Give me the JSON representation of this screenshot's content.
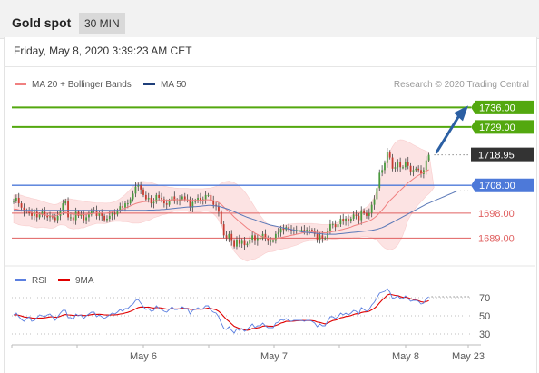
{
  "header": {
    "title": "Gold spot",
    "timeframe": "30 MIN",
    "datetime": "Friday, May 8, 2020 3:39:23 AM CET"
  },
  "legend": {
    "ma_bollinger_label": "MA 20 + Bollinger Bands",
    "ma50_label": "MA 50",
    "copyright": "Research © 2020 Trading Central",
    "rsi_label": "RSI",
    "rsi_ma_label": "9MA"
  },
  "colors": {
    "ma_bollinger": "#f08080",
    "ma50": "#1f3f7a",
    "resistance": "#53a80f",
    "pivot": "#4d79d9",
    "support": "#e06060",
    "arrow": "#2b5fa3",
    "price_box": "#333333",
    "rsi": "#5b7fe0",
    "rsi_ma": "#e00000"
  },
  "chart_data": [
    {
      "type": "candlestick",
      "title": "Gold spot",
      "timeframe": "30 MIN",
      "y_range": [
        1680,
        1742
      ],
      "current_price": 1718.95,
      "levels": [
        {
          "value": 1736.0,
          "label": "1736.00",
          "kind": "resistance"
        },
        {
          "value": 1729.0,
          "label": "1729.00",
          "kind": "resistance"
        },
        {
          "value": 1718.95,
          "label": "1718.95",
          "kind": "current"
        },
        {
          "value": 1708.0,
          "label": "1708.00",
          "kind": "pivot"
        },
        {
          "value": 1698.0,
          "label": "1698.00",
          "kind": "support"
        },
        {
          "value": 1689.0,
          "label": "1689.00",
          "kind": "support"
        }
      ],
      "x_ticks": [
        "May 6",
        "May 7",
        "May 8",
        "May 23"
      ],
      "close_series": [
        1702.5,
        1703.5,
        1701.5,
        1700.0,
        1698.5,
        1699.0,
        1698.0,
        1697.0,
        1698.5,
        1696.5,
        1697.5,
        1698.5,
        1697.0,
        1696.5,
        1697.0,
        1696.5,
        1695.5,
        1697.0,
        1699.0,
        1701.5,
        1702.5,
        1696.5,
        1696.5,
        1695.5,
        1698.5,
        1697.0,
        1697.5,
        1695.5,
        1696.5,
        1697.5,
        1699.0,
        1699.0,
        1697.0,
        1698.0,
        1697.0,
        1695.5,
        1696.0,
        1697.0,
        1698.0,
        1697.5,
        1699.0,
        1700.5,
        1700.0,
        1701.5,
        1701.5,
        1703.0,
        1705.0,
        1707.5,
        1708.0,
        1706.5,
        1704.5,
        1703.0,
        1703.5,
        1701.5,
        1702.0,
        1704.5,
        1703.5,
        1703.0,
        1701.5,
        1701.0,
        1702.5,
        1704.0,
        1702.5,
        1702.5,
        1703.0,
        1704.0,
        1703.0,
        1703.0,
        1700.0,
        1702.0,
        1702.5,
        1703.5,
        1702.5,
        1703.0,
        1704.5,
        1704.5,
        1702.5,
        1701.0,
        1700.5,
        1698.5,
        1694.0,
        1690.0,
        1689.0,
        1690.5,
        1688.0,
        1686.0,
        1688.5,
        1687.0,
        1688.0,
        1686.5,
        1687.0,
        1688.5,
        1690.0,
        1688.0,
        1689.0,
        1689.0,
        1690.5,
        1689.0,
        1688.0,
        1688.0,
        1688.0,
        1690.5,
        1691.0,
        1692.5,
        1692.0,
        1693.0,
        1692.0,
        1691.5,
        1692.0,
        1692.0,
        1692.0,
        1692.0,
        1691.5,
        1692.0,
        1692.0,
        1691.5,
        1690.5,
        1688.5,
        1690.0,
        1689.0,
        1689.0,
        1691.5,
        1694.0,
        1694.0,
        1693.0,
        1694.0,
        1696.0,
        1695.0,
        1696.0,
        1695.0,
        1696.0,
        1697.5,
        1697.0,
        1695.5,
        1699.0,
        1698.0,
        1697.0,
        1698.0,
        1701.0,
        1703.0,
        1707.0,
        1712.5,
        1713.5,
        1716.0,
        1720.0,
        1718.0,
        1714.0,
        1714.5,
        1716.5,
        1714.5,
        1714.5,
        1716.5,
        1715.0,
        1713.0,
        1713.5,
        1714.0,
        1713.5,
        1712.0,
        1713.5,
        1717.0,
        1718.95
      ],
      "ma20_series": [
        1699.5,
        1699.4,
        1699.2,
        1699.0,
        1698.8,
        1698.6,
        1698.5,
        1698.2,
        1698.0,
        1697.8,
        1697.7,
        1697.6,
        1697.4,
        1697.2,
        1697.0,
        1696.9,
        1697.0,
        1697.4,
        1697.8,
        1698.1,
        1698.3,
        1698.0,
        1697.8,
        1697.6,
        1697.6,
        1697.5,
        1697.6,
        1697.5,
        1697.6,
        1697.7,
        1697.8,
        1697.9,
        1698.0,
        1698.0,
        1698.0,
        1697.9,
        1698.0,
        1698.2,
        1698.4,
        1698.6,
        1698.8,
        1699.1,
        1699.4,
        1699.8,
        1700.2,
        1700.6,
        1701.0,
        1701.4,
        1701.7,
        1701.9,
        1702.1,
        1702.2,
        1702.3,
        1702.4,
        1702.5,
        1702.5,
        1702.5,
        1702.6,
        1702.6,
        1702.6,
        1702.7,
        1702.8,
        1702.9,
        1702.8,
        1702.8,
        1702.8,
        1702.8,
        1702.8,
        1702.5,
        1702.6,
        1702.6,
        1702.6,
        1702.6,
        1702.7,
        1702.8,
        1702.8,
        1702.7,
        1702.5,
        1702.2,
        1701.8,
        1701.1,
        1700.2,
        1699.3,
        1698.6,
        1697.6,
        1696.6,
        1695.8,
        1694.9,
        1694.2,
        1693.4,
        1692.6,
        1692.0,
        1691.5,
        1690.8,
        1690.3,
        1689.8,
        1689.5,
        1689.2,
        1689.0,
        1688.8,
        1688.7,
        1688.8,
        1689.0,
        1689.2,
        1689.4,
        1689.6,
        1689.8,
        1690.0,
        1690.2,
        1690.4,
        1690.6,
        1690.8,
        1691.0,
        1691.1,
        1691.2,
        1691.2,
        1691.2,
        1691.1,
        1691.1,
        1691.0,
        1690.9,
        1691.0,
        1691.2,
        1691.4,
        1691.5,
        1691.7,
        1692.0,
        1692.2,
        1692.5,
        1692.7,
        1693.0,
        1693.4,
        1693.7,
        1693.9,
        1694.3,
        1694.6,
        1694.9,
        1695.2,
        1695.7,
        1696.3,
        1697.1,
        1698.1,
        1699.1,
        1700.2,
        1701.4,
        1702.5,
        1703.4,
        1704.3,
        1705.3,
        1706.2,
        1707.1,
        1708.0,
        1708.9,
        1709.6,
        1710.3,
        1711.0,
        1711.6,
        1712.1,
        1712.6,
        1713.1,
        1713.6
      ],
      "ma50_series": [
        1699.0,
        1699.0,
        1699.0,
        1699.0,
        1699.0,
        1699.0,
        1699.0,
        1699.0,
        1699.0,
        1699.0,
        1699.0,
        1699.0,
        1699.0,
        1699.0,
        1699.0,
        1699.0,
        1699.0,
        1699.0,
        1699.0,
        1699.0,
        1699.0,
        1699.0,
        1699.0,
        1699.0,
        1699.0,
        1699.0,
        1699.0,
        1699.0,
        1699.0,
        1699.0,
        1699.0,
        1699.0,
        1699.0,
        1699.0,
        1699.0,
        1699.0,
        1699.0,
        1699.0,
        1699.0,
        1699.0,
        1699.0,
        1699.0,
        1699.0,
        1699.0,
        1699.0,
        1699.0,
        1699.0,
        1699.0,
        1699.0,
        1699.0,
        1699.0,
        1699.0,
        1699.1,
        1699.1,
        1699.1,
        1699.2,
        1699.2,
        1699.3,
        1699.3,
        1699.4,
        1699.5,
        1699.6,
        1699.7,
        1699.8,
        1699.9,
        1700.0,
        1700.1,
        1700.2,
        1700.2,
        1700.3,
        1700.3,
        1700.4,
        1700.5,
        1700.6,
        1700.7,
        1700.8,
        1700.8,
        1700.7,
        1700.6,
        1700.5,
        1700.2,
        1699.9,
        1699.6,
        1699.3,
        1698.9,
        1698.5,
        1698.1,
        1697.7,
        1697.3,
        1696.9,
        1696.5,
        1696.2,
        1695.9,
        1695.6,
        1695.2,
        1694.9,
        1694.6,
        1694.3,
        1694.0,
        1693.7,
        1693.5,
        1693.3,
        1693.1,
        1692.9,
        1692.7,
        1692.5,
        1692.3,
        1692.1,
        1691.9,
        1691.7,
        1691.5,
        1691.3,
        1691.2,
        1691.1,
        1691.0,
        1690.9,
        1690.8,
        1690.7,
        1690.6,
        1690.5,
        1690.4,
        1690.4,
        1690.4,
        1690.4,
        1690.4,
        1690.5,
        1690.6,
        1690.7,
        1690.8,
        1690.9,
        1691.0,
        1691.1,
        1691.2,
        1691.3,
        1691.4,
        1691.5,
        1691.6,
        1691.7,
        1691.8,
        1692.0,
        1692.2,
        1692.5,
        1692.8,
        1693.2,
        1693.7,
        1694.2,
        1694.7,
        1695.2,
        1695.7,
        1696.2,
        1696.7,
        1697.2,
        1697.7,
        1698.2,
        1698.7,
        1699.2,
        1699.7,
        1700.2,
        1700.7,
        1701.2,
        1701.6,
        1702.0,
        1702.4,
        1702.8,
        1703.2,
        1703.6,
        1704.0,
        1704.4,
        1704.8,
        1705.2,
        1705.6,
        1706.0
      ],
      "bollinger_upper": [
        1704.5,
        1704.6,
        1704.6,
        1704.4,
        1704.1,
        1703.8,
        1703.6,
        1703.3,
        1703.1,
        1702.9,
        1702.6,
        1702.3,
        1702.0,
        1701.7,
        1701.4,
        1701.2,
        1701.1,
        1701.3,
        1701.8,
        1702.5,
        1703.0,
        1703.2,
        1703.1,
        1702.9,
        1702.8,
        1702.6,
        1702.5,
        1702.3,
        1702.1,
        1702.0,
        1701.9,
        1701.8,
        1701.7,
        1701.7,
        1701.7,
        1701.6,
        1701.6,
        1701.7,
        1701.9,
        1702.2,
        1702.6,
        1703.2,
        1703.9,
        1704.7,
        1705.6,
        1706.6,
        1707.6,
        1708.4,
        1709.0,
        1709.3,
        1709.4,
        1709.3,
        1709.2,
        1709.0,
        1708.7,
        1708.4,
        1708.1,
        1707.9,
        1707.7,
        1707.5,
        1707.3,
        1707.2,
        1707.1,
        1707.0,
        1706.9,
        1706.9,
        1706.9,
        1706.9,
        1706.8,
        1706.8,
        1706.8,
        1706.8,
        1706.8,
        1706.8,
        1706.9,
        1707.0,
        1707.1,
        1707.3,
        1707.6,
        1708.1,
        1708.7,
        1709.2,
        1709.4,
        1709.5,
        1709.3,
        1708.9,
        1708.4,
        1707.7,
        1706.8,
        1705.8,
        1704.5,
        1703.0,
        1701.6,
        1700.1,
        1698.6,
        1697.2,
        1696.0,
        1694.8,
        1694.0,
        1693.5,
        1693.2,
        1693.1,
        1693.2,
        1693.4,
        1693.6,
        1693.8,
        1694.0,
        1694.1,
        1694.2,
        1694.3,
        1694.3,
        1694.3,
        1694.3,
        1694.3,
        1694.3,
        1694.3,
        1694.2,
        1694.1,
        1694.0,
        1693.9,
        1693.9,
        1693.9,
        1694.0,
        1694.2,
        1694.4,
        1694.7,
        1695.1,
        1695.6,
        1696.1,
        1696.6,
        1697.1,
        1697.6,
        1698.1,
        1698.6,
        1699.1,
        1699.6,
        1700.2,
        1701.0,
        1702.2,
        1703.9,
        1706.2,
        1709.0,
        1712.0,
        1715.0,
        1717.8,
        1720.2,
        1722.0,
        1723.3,
        1724.1,
        1724.4,
        1724.3,
        1724.0,
        1723.6,
        1723.1,
        1722.6,
        1722.1,
        1721.6,
        1721.1,
        1720.7,
        1720.3,
        1720.0
      ],
      "bollinger_lower": [
        1694.5,
        1694.2,
        1693.8,
        1693.6,
        1693.5,
        1693.4,
        1693.4,
        1693.1,
        1692.9,
        1692.7,
        1692.8,
        1692.9,
        1692.8,
        1692.7,
        1692.6,
        1692.6,
        1692.9,
        1693.5,
        1693.8,
        1693.7,
        1693.6,
        1692.8,
        1692.5,
        1692.3,
        1692.4,
        1692.4,
        1692.7,
        1692.7,
        1693.1,
        1693.4,
        1693.7,
        1694.0,
        1694.3,
        1694.3,
        1694.3,
        1694.2,
        1694.4,
        1694.7,
        1694.9,
        1695.0,
        1695.0,
        1695.0,
        1694.9,
        1694.9,
        1694.8,
        1694.6,
        1694.4,
        1694.4,
        1694.4,
        1694.5,
        1694.8,
        1695.1,
        1695.4,
        1695.8,
        1696.3,
        1696.6,
        1696.9,
        1697.3,
        1697.5,
        1697.7,
        1698.1,
        1698.4,
        1698.7,
        1698.6,
        1698.7,
        1698.7,
        1698.7,
        1698.7,
        1698.2,
        1698.4,
        1698.4,
        1698.4,
        1698.4,
        1698.6,
        1698.7,
        1698.6,
        1698.3,
        1697.7,
        1696.8,
        1695.5,
        1693.5,
        1691.2,
        1689.2,
        1687.7,
        1685.9,
        1684.3,
        1683.2,
        1682.1,
        1681.6,
        1681.0,
        1680.7,
        1681.0,
        1681.4,
        1681.5,
        1682.0,
        1682.4,
        1683.0,
        1683.6,
        1684.0,
        1684.1,
        1684.2,
        1684.5,
        1684.8,
        1685.0,
        1685.2,
        1685.4,
        1685.6,
        1685.9,
        1686.2,
        1686.5,
        1686.9,
        1687.3,
        1687.7,
        1687.9,
        1688.1,
        1688.1,
        1688.2,
        1688.1,
        1688.2,
        1688.1,
        1687.9,
        1688.1,
        1688.4,
        1688.6,
        1688.6,
        1688.7,
        1688.9,
        1688.8,
        1688.9,
        1688.8,
        1688.9,
        1689.2,
        1689.3,
        1689.2,
        1689.5,
        1689.6,
        1689.6,
        1689.4,
        1689.2,
        1688.7,
        1688.3,
        1687.2,
        1686.2,
        1685.4,
        1685.0,
        1684.8,
        1685.0,
        1685.5,
        1686.5,
        1688.0,
        1690.1,
        1692.8,
        1695.5,
        1697.2,
        1698.5,
        1700.0,
        1701.1,
        1702.1,
        1703.1,
        1704.1,
        1704.9,
        1705.9,
        1707.2
      ]
    },
    {
      "type": "line",
      "title": "RSI",
      "y_range": [
        20,
        80
      ],
      "y_ticks": [
        "70",
        "50",
        "30"
      ],
      "rsi_series": [
        51.0,
        53.0,
        49.0,
        46.0,
        44.0,
        47.0,
        49.0,
        44.0,
        45.0,
        48.0,
        51.0,
        50.0,
        49.0,
        51.0,
        52.0,
        49.0,
        45.0,
        49.0,
        53.0,
        56.0,
        56.0,
        48.0,
        48.0,
        46.0,
        52.0,
        50.0,
        51.0,
        47.0,
        50.0,
        52.0,
        54.0,
        54.0,
        49.0,
        51.0,
        49.0,
        47.0,
        49.0,
        51.0,
        53.0,
        52.0,
        54.0,
        57.0,
        55.0,
        58.0,
        58.0,
        61.0,
        63.0,
        67.0,
        68.0,
        64.0,
        60.0,
        57.0,
        58.0,
        55.0,
        56.0,
        61.0,
        58.0,
        57.0,
        55.0,
        54.0,
        57.0,
        60.0,
        57.0,
        57.0,
        58.0,
        60.0,
        58.0,
        58.0,
        52.0,
        56.0,
        57.0,
        59.0,
        57.0,
        58.0,
        61.0,
        61.0,
        56.0,
        54.0,
        53.0,
        49.0,
        42.0,
        36.0,
        35.0,
        38.0,
        34.0,
        31.0,
        36.0,
        34.0,
        36.0,
        33.0,
        35.0,
        38.0,
        41.0,
        37.0,
        39.0,
        39.0,
        42.0,
        39.0,
        37.0,
        37.0,
        37.0,
        42.0,
        43.0,
        46.0,
        45.0,
        47.0,
        45.0,
        44.0,
        45.0,
        45.0,
        45.0,
        45.0,
        44.0,
        45.0,
        45.0,
        44.0,
        42.0,
        38.0,
        41.0,
        39.0,
        39.0,
        44.0,
        49.0,
        49.0,
        47.0,
        49.0,
        53.0,
        51.0,
        53.0,
        51.0,
        53.0,
        56.0,
        55.0,
        52.0,
        59.0,
        57.0,
        55.0,
        57.0,
        62.0,
        65.0,
        70.0,
        75.0,
        76.0,
        77.0,
        80.0,
        76.0,
        69.0,
        70.0,
        72.0,
        69.0,
        69.0,
        72.0,
        69.0,
        66.0,
        67.0,
        67.0,
        66.0,
        63.0,
        64.0,
        69.0,
        71.0
      ],
      "rsi_ma9_series": [
        51.0,
        51.2,
        50.6,
        49.8,
        48.8,
        48.4,
        48.3,
        47.7,
        47.3,
        47.3,
        47.6,
        47.6,
        47.8,
        48.3,
        48.8,
        49.0,
        48.4,
        48.6,
        49.5,
        50.7,
        51.4,
        51.0,
        50.8,
        50.3,
        50.5,
        50.5,
        50.8,
        50.3,
        50.3,
        50.8,
        51.3,
        51.8,
        51.6,
        51.7,
        51.5,
        51.0,
        50.9,
        50.8,
        51.1,
        51.0,
        51.3,
        52.0,
        52.3,
        53.1,
        53.8,
        54.9,
        56.1,
        57.7,
        59.1,
        59.7,
        59.6,
        59.5,
        59.6,
        59.0,
        58.6,
        59.1,
        59.0,
        58.6,
        58.0,
        57.4,
        57.4,
        57.9,
        57.6,
        57.6,
        57.8,
        58.3,
        58.2,
        58.2,
        57.2,
        57.2,
        57.2,
        57.5,
        57.3,
        57.4,
        58.0,
        58.6,
        58.1,
        57.4,
        56.6,
        55.0,
        52.4,
        49.1,
        46.1,
        43.8,
        41.1,
        38.5,
        37.3,
        36.1,
        35.5,
        34.4,
        34.1,
        34.7,
        36.1,
        36.2,
        36.8,
        37.3,
        38.6,
        38.9,
        38.7,
        38.6,
        38.4,
        39.4,
        40.4,
        42.0,
        42.7,
        43.9,
        44.0,
        43.9,
        44.2,
        44.5,
        44.7,
        44.9,
        44.8,
        44.8,
        44.9,
        44.7,
        44.3,
        43.1,
        42.7,
        41.9,
        41.1,
        41.9,
        43.5,
        44.8,
        45.3,
        46.1,
        47.8,
        48.3,
        49.3,
        49.6,
        50.3,
        51.5,
        52.3,
        52.2,
        53.6,
        54.2,
        54.4,
        55.0,
        56.6,
        58.3,
        60.8,
        64.3,
        67.4,
        70.0,
        72.9,
        73.9,
        73.1,
        72.5,
        72.3,
        71.2,
        70.3,
        70.5,
        70.0,
        68.8,
        68.0,
        67.3,
        66.6,
        65.5,
        64.9,
        65.6,
        66.6
      ]
    }
  ]
}
